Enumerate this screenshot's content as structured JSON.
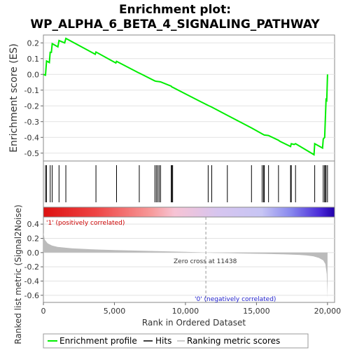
{
  "chart_data": [
    {
      "type": "line",
      "title": "Enrichment plot:\nWP_ALPHA_6_BETA_4_SIGNALING_PATHWAY",
      "ylabel": "Enrichment score (ES)",
      "ylim": [
        -0.55,
        0.25
      ],
      "yticks": [
        0.2,
        0.1,
        0.0,
        -0.1,
        -0.2,
        -0.3,
        -0.4,
        -0.5
      ],
      "xlim": [
        0,
        20500
      ],
      "line_color": "#00ee00",
      "es_profile": [
        [
          0,
          0.0
        ],
        [
          150,
          -0.005
        ],
        [
          220,
          0.085
        ],
        [
          420,
          0.075
        ],
        [
          480,
          0.14
        ],
        [
          560,
          0.14
        ],
        [
          620,
          0.195
        ],
        [
          1020,
          0.175
        ],
        [
          1100,
          0.215
        ],
        [
          1500,
          0.2
        ],
        [
          1580,
          0.228
        ],
        [
          3650,
          0.128
        ],
        [
          3700,
          0.142
        ],
        [
          5100,
          0.072
        ],
        [
          5150,
          0.083
        ],
        [
          6700,
          0.01
        ],
        [
          6750,
          0.008
        ],
        [
          7850,
          -0.042
        ],
        [
          7950,
          -0.044
        ],
        [
          8050,
          -0.045
        ],
        [
          8150,
          -0.046
        ],
        [
          8250,
          -0.048
        ],
        [
          9000,
          -0.075
        ],
        [
          9050,
          -0.08
        ],
        [
          9100,
          -0.082
        ],
        [
          11000,
          -0.17
        ],
        [
          11600,
          -0.197
        ],
        [
          11850,
          -0.208
        ],
        [
          12950,
          -0.26
        ],
        [
          14650,
          -0.34
        ],
        [
          15400,
          -0.378
        ],
        [
          15500,
          -0.383
        ],
        [
          15550,
          -0.385
        ],
        [
          15850,
          -0.388
        ],
        [
          16550,
          -0.418
        ],
        [
          16650,
          -0.425
        ],
        [
          17400,
          -0.458
        ],
        [
          17450,
          -0.44
        ],
        [
          17650,
          -0.445
        ],
        [
          17750,
          -0.44
        ],
        [
          19050,
          -0.51
        ],
        [
          19100,
          -0.44
        ],
        [
          19650,
          -0.468
        ],
        [
          19700,
          -0.41
        ],
        [
          19800,
          -0.4
        ],
        [
          19830,
          -0.33
        ],
        [
          19900,
          -0.16
        ],
        [
          19950,
          -0.165
        ],
        [
          20000,
          0.0
        ]
      ],
      "hits": [
        150,
        220,
        480,
        620,
        1100,
        1580,
        3700,
        5150,
        6750,
        7850,
        7950,
        8050,
        8150,
        8250,
        9000,
        9050,
        9100,
        11600,
        11850,
        12950,
        14650,
        15400,
        15500,
        15550,
        15850,
        16550,
        17400,
        17450,
        17750,
        19100,
        19700,
        19800,
        19830,
        19900,
        20000
      ]
    },
    {
      "type": "area",
      "ylabel": "Ranked list metric (Signal2Noise)",
      "xlabel": "Rank in Ordered Dataset",
      "ylim": [
        -0.7,
        0.5
      ],
      "yticks": [
        0.4,
        0.2,
        0.0,
        -0.2,
        -0.4,
        -0.6
      ],
      "xticks": [
        0,
        5000,
        10000,
        15000,
        20000
      ],
      "xtick_labels": [
        "0",
        "5,000",
        "10,000",
        "15,000",
        "20,000"
      ],
      "xlim": [
        0,
        20500
      ],
      "fill_color": "#bbbbbb",
      "metric_profile": [
        [
          0,
          0.28
        ],
        [
          100,
          0.18
        ],
        [
          300,
          0.13
        ],
        [
          600,
          0.1
        ],
        [
          1000,
          0.08
        ],
        [
          2000,
          0.06
        ],
        [
          3000,
          0.05
        ],
        [
          4000,
          0.042
        ],
        [
          5000,
          0.035
        ],
        [
          6000,
          0.03
        ],
        [
          7000,
          0.025
        ],
        [
          8000,
          0.02
        ],
        [
          9000,
          0.015
        ],
        [
          10000,
          0.01
        ],
        [
          11000,
          0.004
        ],
        [
          11438,
          0.0
        ],
        [
          12000,
          -0.004
        ],
        [
          13000,
          -0.008
        ],
        [
          14000,
          -0.012
        ],
        [
          15000,
          -0.016
        ],
        [
          16000,
          -0.02
        ],
        [
          17000,
          -0.025
        ],
        [
          18000,
          -0.032
        ],
        [
          18500,
          -0.04
        ],
        [
          19000,
          -0.052
        ],
        [
          19400,
          -0.075
        ],
        [
          19700,
          -0.11
        ],
        [
          19850,
          -0.16
        ],
        [
          19950,
          -0.3
        ],
        [
          20000,
          -0.64
        ]
      ],
      "zero_cross": 11438,
      "annotations": {
        "pos": "'1' (positively correlated)",
        "neg": "'0' (negatively correlated)",
        "zero": "Zero cross at 11438"
      }
    }
  ],
  "legend": {
    "items": [
      {
        "label": "Enrichment profile",
        "color": "#00ee00"
      },
      {
        "label": "Hits",
        "color": "#000000"
      },
      {
        "label": "Ranking metric scores",
        "color": "#bbbbbb"
      }
    ]
  }
}
